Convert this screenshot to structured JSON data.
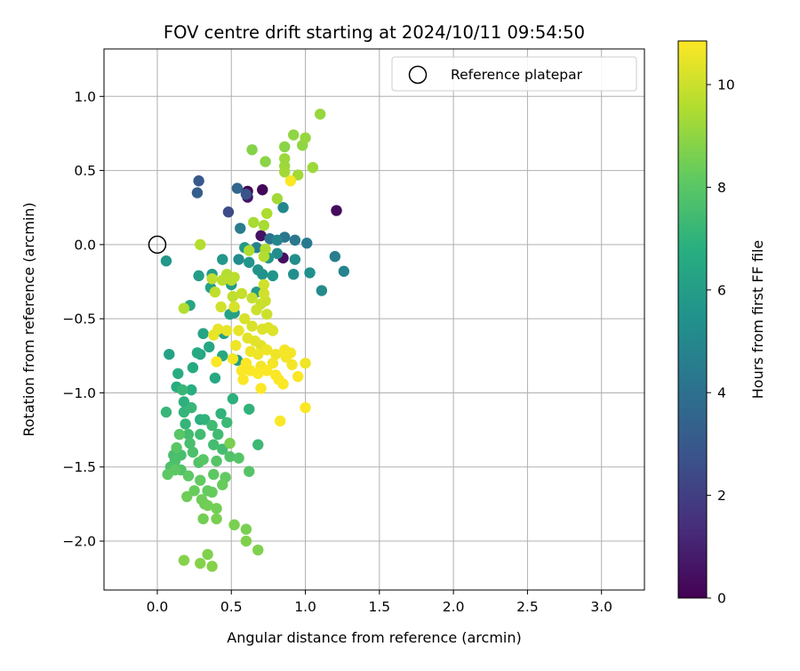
{
  "chart_data": {
    "type": "scatter",
    "title": "FOV centre drift starting at 2024/10/11 09:54:50",
    "xlabel": "Angular distance from reference (arcmin)",
    "ylabel": "Rotation from reference (arcmin)",
    "xlim": [
      -0.36,
      3.29
    ],
    "ylim": [
      -2.33,
      1.32
    ],
    "xticks": [
      0.0,
      0.5,
      1.0,
      1.5,
      2.0,
      2.5,
      3.0
    ],
    "xtick_labels": [
      "0.0",
      "0.5",
      "1.0",
      "1.5",
      "2.0",
      "2.5",
      "3.0"
    ],
    "yticks": [
      -2.0,
      -1.5,
      -1.0,
      -0.5,
      0.0,
      0.5,
      1.0
    ],
    "ytick_labels": [
      "−2.0",
      "−1.5",
      "−1.0",
      "−0.5",
      "0.0",
      "0.5",
      "1.0"
    ],
    "grid": true,
    "legend": {
      "position": "top-right",
      "entries": [
        "Reference platepar"
      ]
    },
    "reference_point": {
      "x": 0.0,
      "y": 0.0
    },
    "colorbar": {
      "label": "Hours from first FF file",
      "colormap": "viridis",
      "range": [
        0,
        10.85
      ],
      "ticks": [
        0,
        2,
        4,
        6,
        8,
        10
      ],
      "tick_labels": [
        "0",
        "2",
        "4",
        "6",
        "8",
        "10"
      ]
    },
    "series": [
      {
        "colored_by": "Hours from first FF file",
        "points": [
          [
            0.61,
            0.36,
            0.1
          ],
          [
            0.71,
            0.37,
            0.2
          ],
          [
            1.21,
            0.23,
            0.3
          ],
          [
            0.85,
            -0.09,
            0.4
          ],
          [
            0.7,
            0.06,
            0.5
          ],
          [
            0.61,
            0.32,
            0.6
          ],
          [
            0.48,
            0.22,
            2.5
          ],
          [
            0.6,
            0.34,
            2.8
          ],
          [
            0.28,
            0.43,
            3.0
          ],
          [
            0.27,
            0.35,
            3.2
          ],
          [
            0.54,
            0.38,
            3.5
          ],
          [
            0.76,
            0.04,
            4.1
          ],
          [
            0.86,
            0.05,
            4.2
          ],
          [
            0.93,
            0.03,
            4.3
          ],
          [
            1.01,
            0.01,
            4.4
          ],
          [
            0.56,
            0.11,
            4.5
          ],
          [
            1.2,
            -0.08,
            4.6
          ],
          [
            0.67,
            -0.02,
            4.7
          ],
          [
            1.26,
            -0.18,
            4.8
          ],
          [
            0.81,
            0.03,
            4.9
          ],
          [
            0.85,
            0.25,
            5.0
          ],
          [
            1.11,
            -0.31,
            5.1
          ],
          [
            0.55,
            -0.1,
            5.2
          ],
          [
            0.93,
            -0.1,
            5.3
          ],
          [
            0.81,
            -0.06,
            5.2
          ],
          [
            1.03,
            -0.19,
            5.4
          ],
          [
            0.92,
            -0.2,
            5.4
          ],
          [
            0.68,
            -0.17,
            5.5
          ],
          [
            0.71,
            -0.2,
            5.5
          ],
          [
            0.78,
            -0.21,
            5.6
          ],
          [
            0.62,
            -0.12,
            5.6
          ],
          [
            0.75,
            -0.09,
            5.7
          ],
          [
            0.44,
            -0.1,
            5.7
          ],
          [
            0.59,
            -0.02,
            5.8
          ],
          [
            0.67,
            -0.32,
            5.8
          ],
          [
            0.5,
            -0.27,
            5.9
          ],
          [
            0.37,
            -0.2,
            5.9
          ],
          [
            0.28,
            -0.21,
            6.0
          ],
          [
            0.52,
            -0.46,
            6.0
          ],
          [
            0.54,
            -0.78,
            6.1
          ],
          [
            0.45,
            -0.6,
            6.1
          ],
          [
            0.36,
            -0.29,
            6.2
          ],
          [
            0.49,
            -0.47,
            6.2
          ],
          [
            0.31,
            -0.6,
            6.3
          ],
          [
            0.29,
            -0.74,
            6.3
          ],
          [
            0.22,
            -0.41,
            6.4
          ],
          [
            0.35,
            -0.69,
            6.4
          ],
          [
            0.44,
            -0.75,
            6.5
          ],
          [
            0.39,
            -0.9,
            6.5
          ],
          [
            0.24,
            -0.83,
            6.6
          ],
          [
            0.27,
            -0.73,
            6.6
          ],
          [
            0.14,
            -0.87,
            6.7
          ],
          [
            0.13,
            -0.96,
            6.7
          ],
          [
            0.29,
            -1.18,
            6.8
          ],
          [
            0.23,
            -0.98,
            6.8
          ],
          [
            0.18,
            -1.06,
            6.9
          ],
          [
            0.51,
            -1.04,
            6.9
          ],
          [
            0.62,
            -1.11,
            7.0
          ],
          [
            0.43,
            -1.14,
            7.0
          ],
          [
            0.32,
            -1.18,
            7.0
          ],
          [
            0.19,
            -1.21,
            7.1
          ],
          [
            0.18,
            -1.13,
            7.1
          ],
          [
            0.06,
            -1.13,
            7.2
          ],
          [
            0.23,
            -1.1,
            7.2
          ],
          [
            0.17,
            -0.98,
            7.2
          ],
          [
            0.08,
            -0.74,
            6.2
          ],
          [
            0.06,
            -0.11,
            5.7
          ],
          [
            0.68,
            -1.35,
            7.3
          ],
          [
            0.47,
            -1.2,
            7.3
          ],
          [
            0.37,
            -1.22,
            7.4
          ],
          [
            0.29,
            -1.28,
            7.4
          ],
          [
            0.41,
            -1.28,
            7.4
          ],
          [
            0.38,
            -1.35,
            7.5
          ],
          [
            0.44,
            -1.38,
            7.5
          ],
          [
            0.21,
            -1.28,
            7.5
          ],
          [
            0.22,
            -1.34,
            7.6
          ],
          [
            0.11,
            -1.42,
            7.6
          ],
          [
            0.16,
            -1.42,
            7.6
          ],
          [
            0.12,
            -1.46,
            7.7
          ],
          [
            0.24,
            -1.4,
            7.7
          ],
          [
            0.09,
            -1.5,
            7.7
          ],
          [
            0.16,
            -1.52,
            7.8
          ],
          [
            0.28,
            -1.47,
            7.8
          ],
          [
            0.49,
            -1.43,
            7.8
          ],
          [
            0.55,
            -1.44,
            7.9
          ],
          [
            0.62,
            -1.53,
            7.9
          ],
          [
            0.4,
            -1.46,
            7.9
          ],
          [
            0.31,
            -1.45,
            8.0
          ],
          [
            0.13,
            -1.37,
            8.0
          ],
          [
            0.15,
            -1.28,
            8.0
          ],
          [
            0.21,
            -1.56,
            8.1
          ],
          [
            0.07,
            -1.55,
            8.1
          ],
          [
            0.12,
            -1.52,
            8.1
          ],
          [
            0.38,
            -1.55,
            8.1
          ],
          [
            0.46,
            -1.57,
            8.2
          ],
          [
            0.29,
            -1.59,
            8.2
          ],
          [
            0.34,
            -1.66,
            8.2
          ],
          [
            0.44,
            -1.62,
            8.3
          ],
          [
            0.37,
            -1.67,
            8.3
          ],
          [
            0.25,
            -1.66,
            8.3
          ],
          [
            0.2,
            -1.7,
            8.4
          ],
          [
            0.3,
            -1.72,
            8.4
          ],
          [
            0.32,
            -1.75,
            8.4
          ],
          [
            0.4,
            -1.78,
            8.5
          ],
          [
            0.34,
            -1.76,
            8.5
          ],
          [
            0.31,
            -1.85,
            8.5
          ],
          [
            0.4,
            -1.85,
            8.6
          ],
          [
            0.52,
            -1.89,
            8.6
          ],
          [
            0.6,
            -1.92,
            8.6
          ],
          [
            0.6,
            -2.0,
            8.7
          ],
          [
            0.68,
            -2.06,
            8.7
          ],
          [
            0.34,
            -2.09,
            8.7
          ],
          [
            0.18,
            -2.13,
            8.8
          ],
          [
            0.29,
            -2.15,
            8.8
          ],
          [
            0.37,
            -2.17,
            8.8
          ],
          [
            0.49,
            -1.34,
            8.6
          ],
          [
            0.18,
            -0.43,
            9.6
          ],
          [
            0.64,
            0.64,
            8.8
          ],
          [
            0.73,
            0.56,
            8.9
          ],
          [
            0.86,
            0.66,
            8.9
          ],
          [
            0.92,
            0.74,
            9.0
          ],
          [
            0.98,
            0.67,
            9.0
          ],
          [
            1.0,
            0.72,
            9.1
          ],
          [
            1.1,
            0.88,
            9.1
          ],
          [
            1.05,
            0.52,
            9.2
          ],
          [
            0.86,
            0.58,
            9.2
          ],
          [
            0.86,
            0.53,
            9.2
          ],
          [
            0.86,
            0.49,
            9.3
          ],
          [
            0.95,
            0.47,
            9.3
          ],
          [
            0.81,
            0.31,
            9.3
          ],
          [
            0.72,
            0.13,
            9.4
          ],
          [
            0.65,
            0.15,
            9.4
          ],
          [
            0.74,
            0.21,
            9.5
          ],
          [
            0.62,
            -0.04,
            9.5
          ],
          [
            0.73,
            -0.03,
            9.5
          ],
          [
            0.72,
            -0.08,
            9.6
          ],
          [
            0.29,
            0.0,
            9.6
          ],
          [
            0.47,
            -0.2,
            9.6
          ],
          [
            0.44,
            -0.24,
            9.7
          ],
          [
            0.5,
            -0.24,
            9.7
          ],
          [
            0.52,
            -0.22,
            9.7
          ],
          [
            0.37,
            -0.23,
            9.8
          ],
          [
            0.39,
            -0.32,
            9.8
          ],
          [
            0.51,
            -0.35,
            9.8
          ],
          [
            0.57,
            -0.33,
            9.9
          ],
          [
            0.64,
            -0.36,
            9.9
          ],
          [
            0.7,
            -0.4,
            9.9
          ],
          [
            0.73,
            -0.38,
            10.0
          ],
          [
            0.74,
            -0.47,
            10.0
          ],
          [
            0.67,
            -0.44,
            10.0
          ],
          [
            0.72,
            -0.33,
            10.1
          ],
          [
            0.72,
            -0.27,
            10.1
          ],
          [
            0.43,
            -0.42,
            10.1
          ],
          [
            0.52,
            -0.42,
            10.2
          ],
          [
            0.59,
            -0.5,
            10.2
          ],
          [
            0.64,
            -0.55,
            10.2
          ],
          [
            0.75,
            -0.56,
            10.3
          ],
          [
            0.78,
            -0.58,
            10.3
          ],
          [
            0.71,
            -0.57,
            10.3
          ],
          [
            0.61,
            -0.63,
            10.4
          ],
          [
            0.66,
            -0.65,
            10.4
          ],
          [
            0.7,
            -0.68,
            10.4
          ],
          [
            0.41,
            -0.57,
            10.5
          ],
          [
            0.38,
            -0.61,
            10.5
          ],
          [
            0.47,
            -0.58,
            10.5
          ],
          [
            0.55,
            -0.58,
            10.5
          ],
          [
            0.53,
            -0.68,
            10.6
          ],
          [
            0.63,
            -0.72,
            10.6
          ],
          [
            0.68,
            -0.74,
            10.6
          ],
          [
            0.74,
            -0.71,
            10.6
          ],
          [
            0.8,
            -0.74,
            10.6
          ],
          [
            0.86,
            -0.71,
            10.7
          ],
          [
            0.9,
            -0.73,
            10.7
          ],
          [
            0.91,
            -0.81,
            10.7
          ],
          [
            0.87,
            -0.76,
            10.7
          ],
          [
            0.78,
            -0.8,
            10.7
          ],
          [
            0.7,
            -0.82,
            10.7
          ],
          [
            0.6,
            -0.8,
            10.8
          ],
          [
            0.57,
            -0.85,
            10.8
          ],
          [
            0.63,
            -0.85,
            10.8
          ],
          [
            0.68,
            -0.87,
            10.8
          ],
          [
            0.74,
            -0.85,
            10.8
          ],
          [
            0.8,
            -0.88,
            10.8
          ],
          [
            0.85,
            -0.94,
            10.8
          ],
          [
            0.95,
            -0.89,
            10.8
          ],
          [
            1.0,
            -0.8,
            10.6
          ],
          [
            1.0,
            -1.1,
            10.8
          ],
          [
            0.83,
            -1.19,
            10.8
          ],
          [
            0.7,
            -0.97,
            10.8
          ],
          [
            0.58,
            -0.91,
            10.8
          ],
          [
            0.4,
            -0.79,
            10.8
          ],
          [
            0.9,
            0.43,
            10.8
          ],
          [
            0.51,
            -0.77,
            10.7
          ],
          [
            0.82,
            -0.91,
            10.8
          ]
        ]
      }
    ]
  }
}
